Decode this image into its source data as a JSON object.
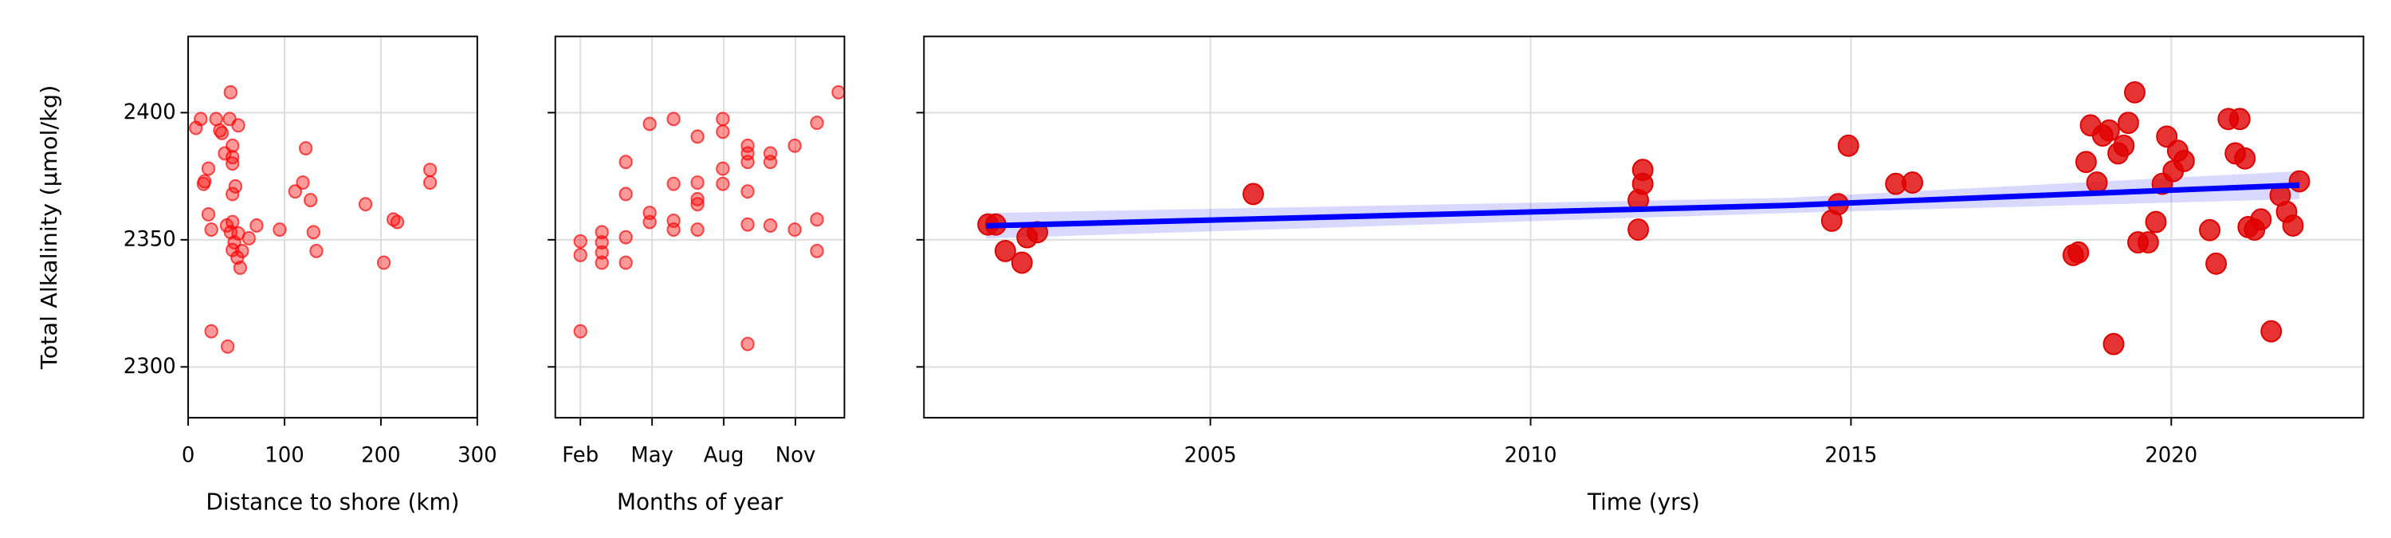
{
  "chart_data": [
    {
      "type": "scatter",
      "ylabel": "Total Alkalinity (µmol/kg)",
      "xlabel": "Distance to shore (km)",
      "xlim": [
        0,
        300
      ],
      "xticks": [
        0,
        100,
        200,
        300
      ],
      "ylim": [
        2280,
        2430
      ],
      "yticks": [
        2300,
        2350,
        2400
      ],
      "grid": true,
      "color": "#ff0000",
      "alpha": 0.4,
      "marker_size": 4,
      "x": [
        8,
        13,
        16,
        17,
        21,
        21,
        24,
        24,
        29,
        33,
        35,
        38,
        40,
        41,
        43,
        44,
        46,
        46,
        46,
        46,
        46,
        44,
        46,
        48,
        49,
        51,
        52,
        52,
        54,
        56,
        63,
        71,
        95,
        111,
        119,
        122,
        127,
        130,
        133,
        184,
        203,
        213,
        217,
        251,
        251
      ],
      "values": [
        2394,
        2397.5,
        2372,
        2373,
        2378,
        2360,
        2354,
        2314,
        2397.5,
        2393,
        2392,
        2384,
        2355.6,
        2308,
        2397.5,
        2408,
        2387,
        2382.5,
        2380,
        2368,
        2357,
        2353,
        2346,
        2349,
        2371,
        2343,
        2395,
        2352.5,
        2339,
        2345.6,
        2350.6,
        2355.6,
        2354,
        2369,
        2372.5,
        2386,
        2365.6,
        2353,
        2345.6,
        2364,
        2341,
        2358,
        2357,
        2372.5,
        2377.5
      ]
    },
    {
      "type": "scatter",
      "xlabel": "Months of year",
      "xlim": [
        0.95,
        13.05
      ],
      "xticks": [
        {
          "value": 2,
          "label": "Feb"
        },
        {
          "value": 5,
          "label": "May"
        },
        {
          "value": 8,
          "label": "Aug"
        },
        {
          "value": 11,
          "label": "Nov"
        }
      ],
      "ylim": [
        2280,
        2430
      ],
      "yticks": [
        2300,
        2350,
        2400
      ],
      "grid": true,
      "color": "#ff0000",
      "alpha": 0.4,
      "marker_size": 4,
      "x": [
        2,
        2,
        2,
        2.9,
        2.9,
        2.9,
        2.9,
        3.9,
        3.9,
        3.9,
        3.9,
        4.9,
        4.9,
        4.9,
        5.9,
        5.9,
        5.9,
        5.9,
        6.9,
        6.9,
        6.9,
        6.9,
        6.9,
        7.96,
        7.96,
        7.96,
        7.96,
        9,
        9,
        9,
        9,
        9,
        9,
        9.95,
        9.95,
        9.95,
        10.97,
        10.97,
        11.9,
        11.9,
        11.9,
        12.8
      ],
      "values": [
        2349.4,
        2344,
        2314,
        2353,
        2349,
        2345,
        2341,
        2380.6,
        2368,
        2351,
        2341,
        2395.6,
        2360.6,
        2357,
        2397.5,
        2372,
        2357.5,
        2354,
        2390.6,
        2372.5,
        2366,
        2364,
        2354,
        2397.5,
        2392.5,
        2378,
        2372,
        2387,
        2384,
        2380.6,
        2369,
        2356,
        2309,
        2384,
        2380.6,
        2355.6,
        2387,
        2354,
        2396,
        2358,
        2345.6,
        2408
      ]
    },
    {
      "type": "scatter",
      "xlabel": "Time (yrs)",
      "xlim": [
        2000.53,
        2023.0
      ],
      "xticks": [
        2005,
        2010,
        2015,
        2020
      ],
      "ylim": [
        2280,
        2430
      ],
      "yticks": [
        2300,
        2350,
        2400
      ],
      "grid": true,
      "color": "#e00000",
      "alpha": 0.8,
      "marker_size": 6.5,
      "x": [
        2001.53,
        2001.65,
        2001.8,
        2002.06,
        2002.14,
        2002.3,
        2005.67,
        2011.68,
        2011.68,
        2011.75,
        2011.75,
        2014.7,
        2014.8,
        2014.96,
        2015.7,
        2015.96,
        2018.47,
        2018.55,
        2018.67,
        2018.74,
        2018.84,
        2018.93,
        2019.03,
        2019.1,
        2019.17,
        2019.26,
        2019.33,
        2019.43,
        2019.48,
        2019.64,
        2019.76,
        2019.86,
        2019.93,
        2020.03,
        2020.1,
        2020.2,
        2020.6,
        2020.7,
        2020.89,
        2021.0,
        2021.07,
        2021.15,
        2021.2,
        2021.3,
        2021.4,
        2021.56,
        2021.7,
        2021.8,
        2021.9,
        2022.0
      ],
      "values": [
        2356,
        2356,
        2345.6,
        2341,
        2351,
        2353,
        2368,
        2365.6,
        2354,
        2377.5,
        2372,
        2357.5,
        2364,
        2387,
        2372,
        2372.5,
        2344,
        2345,
        2380.6,
        2395,
        2372.5,
        2391,
        2393,
        2309,
        2384,
        2387,
        2396,
        2408,
        2349,
        2349,
        2357,
        2372,
        2390.6,
        2377,
        2385,
        2381,
        2353.8,
        2340.6,
        2397.5,
        2384,
        2397.5,
        2382,
        2355,
        2354,
        2358,
        2314,
        2367.5,
        2361,
        2355.6,
        2373
      ],
      "fit": {
        "color": "#0000ff",
        "x": [
          2001.5,
          2014,
          2022.0
        ],
        "values": [
          2355.5,
          2363.5,
          2371.5
        ],
        "ci_lower": [
          2350.5,
          2360.5,
          2366
        ],
        "ci_upper": [
          2360.5,
          2366.5,
          2377
        ]
      }
    }
  ]
}
